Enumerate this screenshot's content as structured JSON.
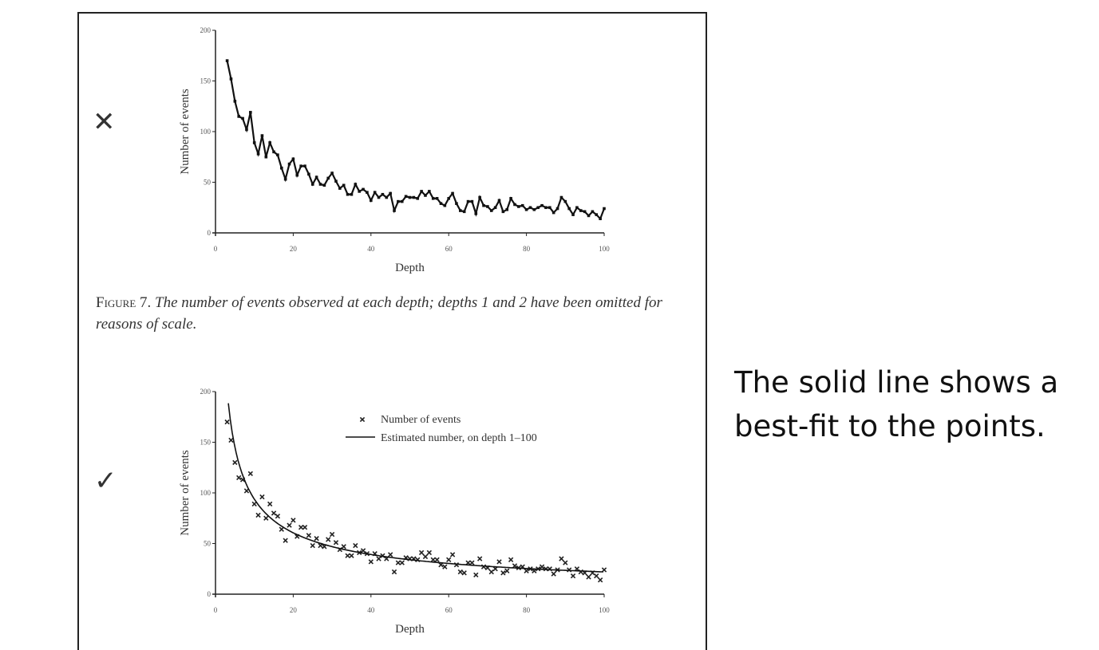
{
  "marks": {
    "wrong": "✕",
    "right": "✓"
  },
  "caption": {
    "figure_label": "Figure 7.",
    "text": "The number of events observed at each depth; depths 1 and 2 have been omitted for reasons of scale."
  },
  "side_text": "The solid line shows a best-fit to the points.",
  "chart_data": [
    {
      "type": "line",
      "title": "",
      "xlabel": "Depth",
      "ylabel": "Number of events",
      "xlim": [
        0,
        100
      ],
      "ylim": [
        0,
        200
      ],
      "xticks": [
        "0",
        "20",
        "40",
        "60",
        "80",
        "100"
      ],
      "yticks": [
        "0",
        "50",
        "100",
        "150",
        "200"
      ],
      "x_start": 3,
      "values": [
        170,
        152,
        130,
        115,
        113,
        102,
        119,
        89,
        78,
        96,
        75,
        89,
        80,
        77,
        64,
        53,
        68,
        73,
        57,
        66,
        66,
        58,
        48,
        55,
        48,
        47,
        54,
        59,
        51,
        44,
        47,
        38,
        38,
        48,
        41,
        43,
        40,
        32,
        40,
        35,
        38,
        35,
        39,
        22,
        31,
        31,
        36,
        35,
        35,
        34,
        41,
        37,
        41,
        34,
        34,
        29,
        27,
        34,
        39,
        29,
        22,
        21,
        31,
        31,
        19,
        35,
        27,
        26,
        22,
        25,
        32,
        21,
        23,
        34,
        28,
        26,
        27,
        23,
        25,
        23,
        25,
        27,
        25,
        25,
        20,
        24,
        35,
        31,
        24,
        18,
        25,
        22,
        21,
        17,
        21,
        18,
        14,
        24
      ]
    },
    {
      "type": "scatter",
      "title": "",
      "xlabel": "Depth",
      "ylabel": "Number of events",
      "xlim": [
        0,
        100
      ],
      "ylim": [
        0,
        200
      ],
      "xticks": [
        "0",
        "20",
        "40",
        "60",
        "80",
        "100"
      ],
      "yticks": [
        "0",
        "50",
        "100",
        "150",
        "200"
      ],
      "legend": [
        "Number of events",
        "Estimated number, on depth 1–100"
      ],
      "legend_position": "top-right",
      "x_start": 3,
      "values": [
        170,
        152,
        130,
        115,
        113,
        102,
        119,
        89,
        78,
        96,
        75,
        89,
        80,
        77,
        64,
        53,
        68,
        73,
        57,
        66,
        66,
        58,
        48,
        55,
        48,
        47,
        54,
        59,
        51,
        44,
        47,
        38,
        38,
        48,
        41,
        43,
        40,
        32,
        40,
        35,
        38,
        35,
        39,
        22,
        31,
        31,
        36,
        35,
        35,
        34,
        41,
        37,
        41,
        34,
        34,
        29,
        27,
        34,
        39,
        29,
        22,
        21,
        31,
        31,
        19,
        35,
        27,
        26,
        22,
        25,
        32,
        21,
        23,
        34,
        28,
        26,
        27,
        23,
        25,
        23,
        25,
        27,
        25,
        25,
        20,
        24,
        35,
        31,
        24,
        18,
        25,
        22,
        21,
        17,
        21,
        18,
        14,
        24
      ],
      "fit": {
        "model": "a*x^-b",
        "a": 400,
        "b": 0.63
      }
    }
  ]
}
